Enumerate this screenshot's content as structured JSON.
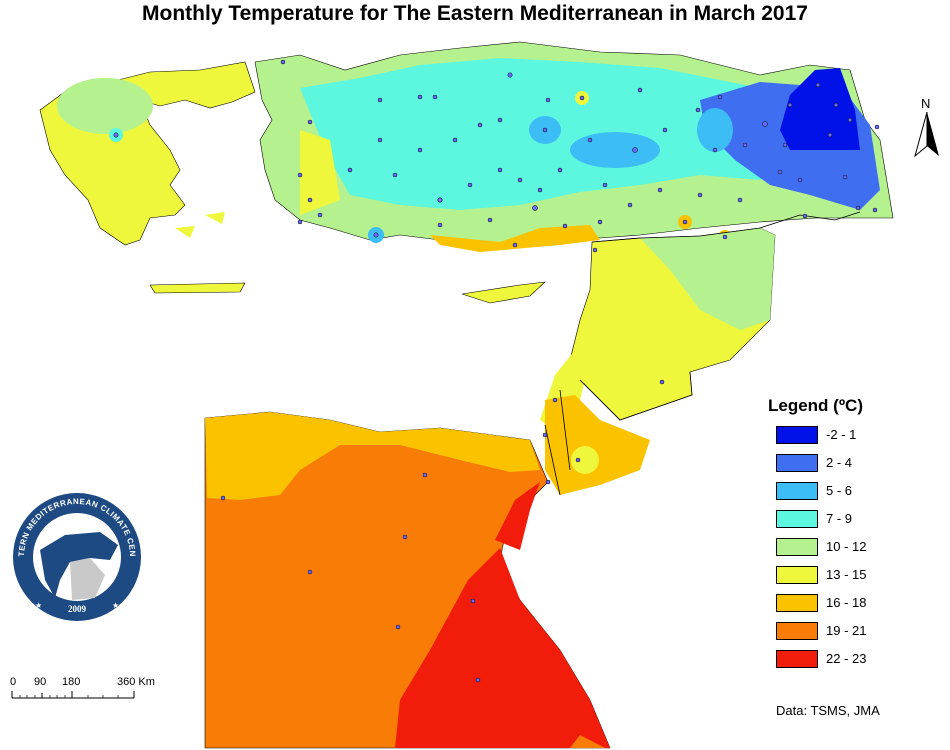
{
  "title": "Monthly Temperature for The Eastern Mediterranean in March 2017",
  "legend": {
    "title": "Legend (ºC)",
    "items": [
      {
        "label": "-2 - 1",
        "color": "#0012e8"
      },
      {
        "label": "2 - 4",
        "color": "#3f6ef0"
      },
      {
        "label": "5 - 6",
        "color": "#3cbdf5"
      },
      {
        "label": "7 - 9",
        "color": "#5cf7de"
      },
      {
        "label": "10 - 12",
        "color": "#b5f28f"
      },
      {
        "label": "13 - 15",
        "color": "#eef73b"
      },
      {
        "label": "16 - 18",
        "color": "#fbc200"
      },
      {
        "label": "19 - 21",
        "color": "#f97c07"
      },
      {
        "label": "22 - 23",
        "color": "#f21c0a"
      }
    ]
  },
  "data_source": "Data: TSMS, JMA",
  "scale": {
    "ticks": [
      "0",
      "90",
      "180",
      "360 Km"
    ],
    "units": "Km"
  },
  "north_arrow": {
    "label": "N",
    "icon": "north-arrow-icon"
  },
  "logo": {
    "text": "EASTERN MEDITERRANEAN CLIMATE CENTRE",
    "year": "2009",
    "icon": "emcc-logo"
  }
}
